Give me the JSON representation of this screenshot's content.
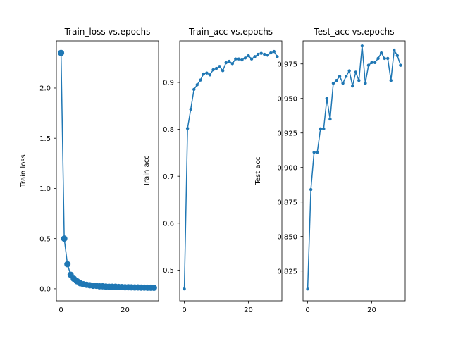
{
  "chart_data": [
    {
      "type": "line",
      "title": "Train_loss vs.epochs",
      "xlabel": "",
      "ylabel": "Train loss",
      "xlim": [
        -1.45,
        30.45
      ],
      "ylim": [
        -0.12,
        2.47
      ],
      "xticks": [
        0,
        20
      ],
      "yticks": [
        0.0,
        0.5,
        1.0,
        1.5,
        2.0
      ],
      "ytick_labels": [
        "0.0",
        "0.5",
        "1.0",
        "1.5",
        "2.0"
      ],
      "grid": false,
      "color": "#1f77b4",
      "marker_size": 4.5,
      "series": [
        {
          "x": [
            0,
            1,
            2,
            3,
            4,
            5,
            6,
            7,
            8,
            9,
            10,
            11,
            12,
            13,
            14,
            15,
            16,
            17,
            18,
            19,
            20,
            21,
            22,
            23,
            24,
            25,
            26,
            27,
            28,
            29
          ],
          "values": [
            2.35,
            0.5,
            0.245,
            0.14,
            0.1,
            0.075,
            0.055,
            0.045,
            0.04,
            0.035,
            0.03,
            0.03,
            0.025,
            0.025,
            0.022,
            0.02,
            0.02,
            0.02,
            0.018,
            0.017,
            0.015,
            0.015,
            0.014,
            0.013,
            0.013,
            0.012,
            0.012,
            0.011,
            0.011,
            0.01
          ]
        }
      ]
    },
    {
      "type": "line",
      "title": "Train_acc vs.epochs",
      "xlabel": "",
      "ylabel": "Train acc",
      "xlim": [
        -1.45,
        30.45
      ],
      "ylim": [
        0.4345,
        0.9886
      ],
      "xticks": [
        0,
        20
      ],
      "yticks": [
        0.5,
        0.6,
        0.7,
        0.8,
        0.9
      ],
      "ytick_labels": [
        "0.5",
        "0.6",
        "0.7",
        "0.8",
        "0.9"
      ],
      "grid": false,
      "color": "#1f77b4",
      "marker_size": 2.2,
      "series": [
        {
          "x": [
            0,
            1,
            2,
            3,
            4,
            5,
            6,
            7,
            8,
            9,
            10,
            11,
            12,
            13,
            14,
            15,
            16,
            17,
            18,
            19,
            20,
            21,
            22,
            23,
            24,
            25,
            26,
            27,
            28,
            29
          ],
          "values": [
            0.46,
            0.802,
            0.843,
            0.885,
            0.895,
            0.905,
            0.918,
            0.92,
            0.916,
            0.927,
            0.93,
            0.934,
            0.925,
            0.942,
            0.945,
            0.94,
            0.95,
            0.95,
            0.948,
            0.952,
            0.957,
            0.95,
            0.955,
            0.96,
            0.962,
            0.96,
            0.958,
            0.963,
            0.966,
            0.955
          ]
        }
      ]
    },
    {
      "type": "line",
      "title": "Test_acc vs.epochs",
      "xlabel": "",
      "ylabel": "Test acc",
      "xlim": [
        -1.45,
        30.45
      ],
      "ylim": [
        0.8034,
        0.9917
      ],
      "xticks": [
        0,
        20
      ],
      "yticks": [
        0.825,
        0.85,
        0.875,
        0.9,
        0.925,
        0.95,
        0.975
      ],
      "ytick_labels": [
        "0.825",
        "0.850",
        "0.875",
        "0.900",
        "0.925",
        "0.950",
        "0.975"
      ],
      "grid": false,
      "color": "#1f77b4",
      "marker_size": 2.2,
      "series": [
        {
          "x": [
            0,
            1,
            2,
            3,
            4,
            5,
            6,
            7,
            8,
            9,
            10,
            11,
            12,
            13,
            14,
            15,
            16,
            17,
            18,
            19,
            20,
            21,
            22,
            23,
            24,
            25,
            26,
            27,
            28,
            29
          ],
          "values": [
            0.812,
            0.884,
            0.911,
            0.911,
            0.928,
            0.928,
            0.95,
            0.935,
            0.961,
            0.963,
            0.966,
            0.961,
            0.966,
            0.97,
            0.959,
            0.969,
            0.963,
            0.988,
            0.961,
            0.974,
            0.976,
            0.976,
            0.979,
            0.983,
            0.979,
            0.979,
            0.963,
            0.985,
            0.981,
            0.974
          ]
        }
      ]
    }
  ]
}
